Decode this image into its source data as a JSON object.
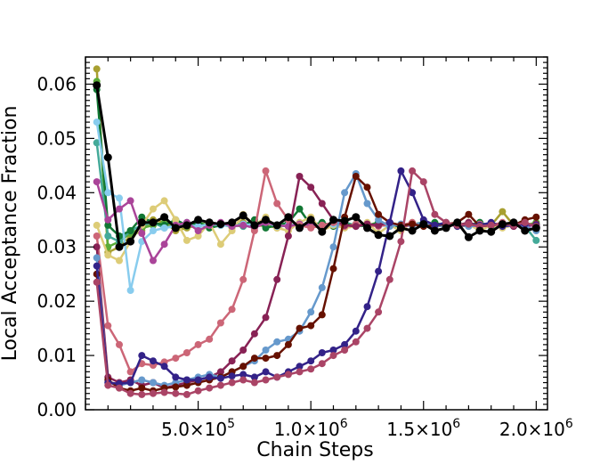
{
  "chart_data": {
    "type": "line",
    "title": "",
    "xlabel": "Chain Steps",
    "ylabel": "Local Acceptance Fraction",
    "xlim": [
      0,
      2050000
    ],
    "ylim": [
      0,
      0.065
    ],
    "x_tick_labels": [
      {
        "value": 500000,
        "mantissa": "5.0",
        "times": "×10",
        "exp": "5"
      },
      {
        "value": 1000000,
        "mantissa": "1.0",
        "times": "×10",
        "exp": "6"
      },
      {
        "value": 1500000,
        "mantissa": "1.5",
        "times": "×10",
        "exp": "6"
      },
      {
        "value": 2000000,
        "mantissa": "2.0",
        "times": "×10",
        "exp": "6"
      }
    ],
    "y_tick_labels": [
      {
        "value": 0.0,
        "label": "0.00"
      },
      {
        "value": 0.01,
        "label": "0.01"
      },
      {
        "value": 0.02,
        "label": "0.02"
      },
      {
        "value": 0.03,
        "label": "0.03"
      },
      {
        "value": 0.04,
        "label": "0.04"
      },
      {
        "value": 0.05,
        "label": "0.05"
      },
      {
        "value": 0.06,
        "label": "0.06"
      }
    ],
    "x": [
      50000,
      100000,
      150000,
      200000,
      250000,
      300000,
      350000,
      400000,
      450000,
      500000,
      550000,
      600000,
      650000,
      700000,
      750000,
      800000,
      850000,
      900000,
      950000,
      1000000,
      1050000,
      1100000,
      1150000,
      1200000,
      1250000,
      1300000,
      1350000,
      1400000,
      1450000,
      1500000,
      1550000,
      1600000,
      1650000,
      1700000,
      1750000,
      1800000,
      1850000,
      1900000,
      1950000,
      2000000
    ],
    "series": [
      {
        "name": "olive",
        "color": "#a8a031",
        "values": [
          0.0628,
          0.029,
          0.03,
          0.032,
          0.033,
          0.035,
          0.0345,
          0.033,
          0.0335,
          0.034,
          0.0338,
          0.0342,
          0.0336,
          0.0345,
          0.0338,
          0.034,
          0.0335,
          0.0342,
          0.034,
          0.0338,
          0.0336,
          0.034,
          0.0342,
          0.0338,
          0.034,
          0.0345,
          0.0338,
          0.034,
          0.0342,
          0.034,
          0.0338,
          0.0342,
          0.034,
          0.0345,
          0.0338,
          0.034,
          0.0365,
          0.034,
          0.0342,
          0.034
        ]
      },
      {
        "name": "green",
        "color": "#5aab37",
        "values": [
          0.0605,
          0.03,
          0.031,
          0.0325,
          0.0335,
          0.034,
          0.0345,
          0.034,
          0.0338,
          0.0345,
          0.034,
          0.0342,
          0.034,
          0.0338,
          0.034,
          0.0345,
          0.034,
          0.0342,
          0.0338,
          0.034,
          0.0342,
          0.034,
          0.0338,
          0.0342,
          0.034,
          0.0345,
          0.034,
          0.0338,
          0.0342,
          0.034,
          0.0338,
          0.0342,
          0.034,
          0.0338,
          0.0342,
          0.034,
          0.0338,
          0.0342,
          0.034,
          0.0345
        ]
      },
      {
        "name": "teal",
        "color": "#44aa99",
        "values": [
          0.0492,
          0.032,
          0.031,
          0.033,
          0.034,
          0.0345,
          0.0335,
          0.034,
          0.0345,
          0.0338,
          0.0342,
          0.034,
          0.0345,
          0.0338,
          0.0342,
          0.0345,
          0.034,
          0.0338,
          0.0342,
          0.034,
          0.0338,
          0.0342,
          0.0345,
          0.034,
          0.0338,
          0.0342,
          0.034,
          0.0338,
          0.0342,
          0.0345,
          0.034,
          0.0338,
          0.0342,
          0.034,
          0.0345,
          0.0338,
          0.0342,
          0.034,
          0.0338,
          0.0312
        ]
      },
      {
        "name": "dark-green",
        "color": "#117733",
        "values": [
          0.059,
          0.034,
          0.032,
          0.033,
          0.0355,
          0.0345,
          0.034,
          0.035,
          0.034,
          0.0345,
          0.0335,
          0.034,
          0.0345,
          0.034,
          0.035,
          0.0335,
          0.034,
          0.0345,
          0.037,
          0.034,
          0.0345,
          0.0338,
          0.0342,
          0.034,
          0.0338,
          0.0345,
          0.034,
          0.0338,
          0.0342,
          0.034,
          0.0345,
          0.0338,
          0.0342,
          0.034,
          0.0345,
          0.0338,
          0.0342,
          0.034,
          0.0338,
          0.0342
        ]
      },
      {
        "name": "sand",
        "color": "#ddcc77",
        "values": [
          0.034,
          0.0285,
          0.0275,
          0.031,
          0.034,
          0.037,
          0.0385,
          0.035,
          0.0312,
          0.032,
          0.0345,
          0.0305,
          0.033,
          0.036,
          0.034,
          0.0355,
          0.0335,
          0.033,
          0.0345,
          0.0355,
          0.033,
          0.034,
          0.0335,
          0.0338,
          0.0345,
          0.0325,
          0.034,
          0.033,
          0.0345,
          0.034,
          0.0335,
          0.0345,
          0.0338,
          0.0342,
          0.033,
          0.034,
          0.0335,
          0.034,
          0.0345,
          0.0338
        ]
      },
      {
        "name": "cyan",
        "color": "#88ccee",
        "values": [
          0.053,
          0.04,
          0.039,
          0.022,
          0.031,
          0.033,
          0.0335,
          0.0338,
          0.034,
          0.0338,
          0.0342,
          0.034,
          0.0338,
          0.0342,
          0.034,
          0.0345,
          0.0338,
          0.034,
          0.0342,
          0.0338,
          0.034,
          0.0342,
          0.034,
          0.0338,
          0.0342,
          0.034,
          0.0338,
          0.0342,
          0.034,
          0.0345,
          0.0338,
          0.034,
          0.0342,
          0.0338,
          0.034,
          0.0342,
          0.034,
          0.0338,
          0.0342,
          0.034
        ]
      },
      {
        "name": "purple",
        "color": "#aa4499",
        "values": [
          0.042,
          0.035,
          0.037,
          0.0385,
          0.0325,
          0.0275,
          0.0305,
          0.034,
          0.0345,
          0.033,
          0.034,
          0.0345,
          0.0338,
          0.034,
          0.0335,
          0.0345,
          0.034,
          0.0338,
          0.0342,
          0.034,
          0.0335,
          0.0345,
          0.034,
          0.0338,
          0.0342,
          0.034,
          0.0345,
          0.0338,
          0.034,
          0.0342,
          0.0338,
          0.034,
          0.0342,
          0.034,
          0.0338,
          0.0342,
          0.034,
          0.0345,
          0.0338,
          0.034
        ]
      },
      {
        "name": "rose",
        "color": "#cc6677",
        "values": [
          0.032,
          0.0155,
          0.012,
          0.007,
          0.0085,
          0.0082,
          0.0088,
          0.0095,
          0.0105,
          0.012,
          0.013,
          0.016,
          0.0185,
          0.024,
          0.033,
          0.044,
          0.038,
          0.035,
          0.034,
          0.0335,
          0.034,
          0.0345,
          0.0338,
          0.0342,
          0.034,
          0.0338,
          0.0342,
          0.034,
          0.0345,
          0.0338,
          0.034,
          0.0342,
          0.0338,
          0.034,
          0.0342,
          0.034,
          0.0345,
          0.0338,
          0.0342,
          0.034
        ]
      },
      {
        "name": "wine",
        "color": "#882255",
        "values": [
          0.03,
          0.006,
          0.005,
          0.0055,
          0.0045,
          0.005,
          0.004,
          0.0045,
          0.005,
          0.0055,
          0.006,
          0.007,
          0.009,
          0.011,
          0.014,
          0.017,
          0.024,
          0.032,
          0.043,
          0.041,
          0.038,
          0.035,
          0.034,
          0.0338,
          0.0342,
          0.034,
          0.0345,
          0.0338,
          0.0342,
          0.034,
          0.0338,
          0.0342,
          0.034,
          0.0345,
          0.0338,
          0.034,
          0.0342,
          0.0338,
          0.034,
          0.0342
        ]
      },
      {
        "name": "blue",
        "color": "#6699cc",
        "values": [
          0.028,
          0.005,
          0.0045,
          0.005,
          0.0055,
          0.005,
          0.0045,
          0.005,
          0.0055,
          0.006,
          0.0065,
          0.006,
          0.007,
          0.008,
          0.009,
          0.011,
          0.0125,
          0.013,
          0.0145,
          0.018,
          0.0225,
          0.03,
          0.04,
          0.0435,
          0.038,
          0.035,
          0.0338,
          0.0342,
          0.034,
          0.0345,
          0.0338,
          0.034,
          0.0342,
          0.0338,
          0.034,
          0.0342,
          0.034,
          0.0345,
          0.0338,
          0.033
        ]
      },
      {
        "name": "maroon",
        "color": "#661100",
        "values": [
          0.025,
          0.0055,
          0.004,
          0.0035,
          0.004,
          0.0035,
          0.004,
          0.0042,
          0.0045,
          0.005,
          0.0055,
          0.006,
          0.007,
          0.008,
          0.0095,
          0.0095,
          0.01,
          0.012,
          0.015,
          0.0155,
          0.0175,
          0.026,
          0.0355,
          0.043,
          0.041,
          0.036,
          0.0345,
          0.034,
          0.0342,
          0.0338,
          0.034,
          0.0342,
          0.0345,
          0.036,
          0.0338,
          0.034,
          0.0342,
          0.034,
          0.035,
          0.0355
        ]
      },
      {
        "name": "indigo",
        "color": "#332288",
        "values": [
          0.0265,
          0.005,
          0.0048,
          0.005,
          0.01,
          0.009,
          0.008,
          0.006,
          0.0055,
          0.0055,
          0.006,
          0.0058,
          0.0062,
          0.0065,
          0.006,
          0.007,
          0.006,
          0.007,
          0.008,
          0.009,
          0.0105,
          0.011,
          0.012,
          0.0145,
          0.019,
          0.0255,
          0.0345,
          0.044,
          0.04,
          0.035,
          0.034,
          0.0345,
          0.0338,
          0.0342,
          0.034,
          0.0345,
          0.0338,
          0.034,
          0.0342,
          0.034
        ]
      },
      {
        "name": "mauve",
        "color": "#aa4466",
        "values": [
          0.0235,
          0.0045,
          0.004,
          0.003,
          0.0028,
          0.003,
          0.0032,
          0.003,
          0.0028,
          0.0035,
          0.004,
          0.0045,
          0.005,
          0.0055,
          0.005,
          0.0055,
          0.006,
          0.0065,
          0.007,
          0.0075,
          0.0085,
          0.01,
          0.011,
          0.0125,
          0.015,
          0.018,
          0.024,
          0.031,
          0.044,
          0.042,
          0.036,
          0.0345,
          0.034,
          0.0342,
          0.0338,
          0.034,
          0.0342,
          0.034,
          0.0345,
          0.0338
        ]
      },
      {
        "name": "mean",
        "color": "#000000",
        "values": [
          0.0598,
          0.0465,
          0.03,
          0.031,
          0.0345,
          0.0345,
          0.0355,
          0.0335,
          0.034,
          0.035,
          0.0345,
          0.0342,
          0.0345,
          0.0358,
          0.034,
          0.035,
          0.034,
          0.0355,
          0.0335,
          0.035,
          0.0328,
          0.035,
          0.0348,
          0.0355,
          0.0335,
          0.0322,
          0.032,
          0.0335,
          0.033,
          0.0342,
          0.033,
          0.0335,
          0.0345,
          0.0318,
          0.033,
          0.0328,
          0.0342,
          0.0345,
          0.033,
          0.0335
        ]
      }
    ]
  }
}
